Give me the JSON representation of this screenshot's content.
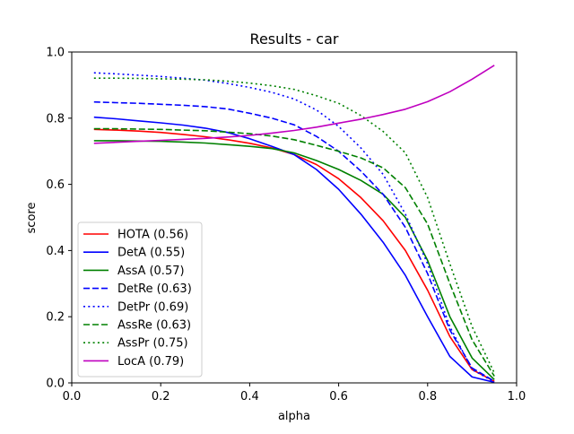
{
  "chart_data": {
    "type": "line",
    "title": "Results - car",
    "xlabel": "alpha",
    "ylabel": "score",
    "xlim": [
      0.0,
      1.0
    ],
    "ylim": [
      0.0,
      1.0
    ],
    "xticks": [
      "0.0",
      "0.2",
      "0.4",
      "0.6",
      "0.8",
      "1.0"
    ],
    "yticks": [
      "0.0",
      "0.2",
      "0.4",
      "0.6",
      "0.8",
      "1.0"
    ],
    "grid": false,
    "legend_position": "lower-left",
    "x": [
      0.05,
      0.1,
      0.15,
      0.2,
      0.25,
      0.3,
      0.35,
      0.4,
      0.45,
      0.5,
      0.55,
      0.6,
      0.65,
      0.7,
      0.75,
      0.8,
      0.85,
      0.9,
      0.95
    ],
    "series": [
      {
        "name": "HOTA (0.56)",
        "color": "#ff0000",
        "style": "solid",
        "values": [
          0.766,
          0.764,
          0.761,
          0.757,
          0.751,
          0.744,
          0.735,
          0.724,
          0.71,
          0.69,
          0.66,
          0.617,
          0.56,
          0.49,
          0.4,
          0.28,
          0.14,
          0.04,
          0.005
        ]
      },
      {
        "name": "DetA (0.55)",
        "color": "#0000ff",
        "style": "solid",
        "values": [
          0.803,
          0.798,
          0.792,
          0.786,
          0.779,
          0.77,
          0.757,
          0.738,
          0.715,
          0.69,
          0.645,
          0.585,
          0.51,
          0.425,
          0.325,
          0.2,
          0.08,
          0.018,
          0.002
        ]
      },
      {
        "name": "AssA (0.57)",
        "color": "#008000",
        "style": "solid",
        "values": [
          0.732,
          0.732,
          0.731,
          0.73,
          0.728,
          0.725,
          0.72,
          0.715,
          0.708,
          0.695,
          0.672,
          0.645,
          0.612,
          0.57,
          0.5,
          0.37,
          0.2,
          0.075,
          0.01
        ]
      },
      {
        "name": "DetRe (0.63)",
        "color": "#0000ff",
        "style": "dashed",
        "values": [
          0.849,
          0.847,
          0.845,
          0.842,
          0.839,
          0.835,
          0.828,
          0.815,
          0.8,
          0.78,
          0.745,
          0.7,
          0.64,
          0.57,
          0.47,
          0.33,
          0.16,
          0.045,
          0.005
        ]
      },
      {
        "name": "DetPr (0.69)",
        "color": "#0000ff",
        "style": "dotted",
        "values": [
          0.937,
          0.934,
          0.93,
          0.926,
          0.921,
          0.915,
          0.905,
          0.893,
          0.878,
          0.858,
          0.825,
          0.775,
          0.71,
          0.63,
          0.51,
          0.36,
          0.17,
          0.04,
          0.003
        ]
      },
      {
        "name": "AssRe (0.63)",
        "color": "#008000",
        "style": "dashed",
        "values": [
          0.768,
          0.768,
          0.767,
          0.766,
          0.764,
          0.762,
          0.758,
          0.753,
          0.746,
          0.735,
          0.718,
          0.7,
          0.68,
          0.65,
          0.59,
          0.48,
          0.3,
          0.13,
          0.02
        ]
      },
      {
        "name": "AssPr (0.75)",
        "color": "#008000",
        "style": "dotted",
        "values": [
          0.921,
          0.921,
          0.92,
          0.919,
          0.918,
          0.916,
          0.912,
          0.906,
          0.898,
          0.887,
          0.868,
          0.845,
          0.808,
          0.76,
          0.695,
          0.56,
          0.36,
          0.17,
          0.03
        ]
      },
      {
        "name": "LocA (0.79)",
        "color": "#bf00bf",
        "style": "solid",
        "values": [
          0.724,
          0.727,
          0.73,
          0.733,
          0.736,
          0.739,
          0.743,
          0.748,
          0.755,
          0.763,
          0.773,
          0.785,
          0.797,
          0.811,
          0.827,
          0.85,
          0.88,
          0.918,
          0.96
        ]
      }
    ]
  }
}
